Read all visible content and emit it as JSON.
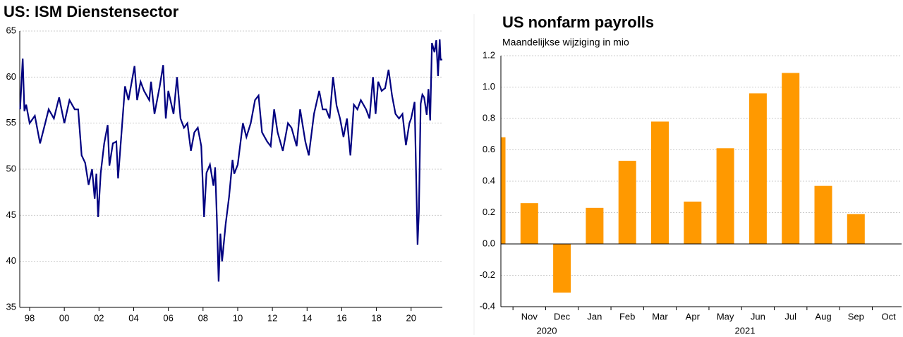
{
  "chart_data": [
    {
      "type": "line",
      "title": "US: ISM Dienstensector",
      "x": [
        1997.45,
        1997.6,
        1997.7,
        1997.8,
        1998.0,
        1998.3,
        1998.6,
        1998.9,
        1999.1,
        1999.4,
        1999.7,
        2000.0,
        2000.3,
        2000.6,
        2000.8,
        2001.0,
        2001.2,
        2001.4,
        2001.6,
        2001.75,
        2001.85,
        2001.95,
        2002.1,
        2002.3,
        2002.5,
        2002.6,
        2002.8,
        2003.0,
        2003.1,
        2003.3,
        2003.5,
        2003.7,
        2004.05,
        2004.2,
        2004.4,
        2004.6,
        2004.9,
        2005.0,
        2005.2,
        2005.5,
        2005.7,
        2005.85,
        2006.0,
        2006.3,
        2006.5,
        2006.7,
        2006.9,
        2007.1,
        2007.3,
        2007.5,
        2007.7,
        2007.9,
        2008.06,
        2008.2,
        2008.4,
        2008.6,
        2008.7,
        2008.8,
        2008.9,
        2009.0,
        2009.1,
        2009.3,
        2009.5,
        2009.7,
        2009.8,
        2010.0,
        2010.3,
        2010.5,
        2010.75,
        2011.0,
        2011.2,
        2011.4,
        2011.7,
        2011.9,
        2012.1,
        2012.3,
        2012.6,
        2012.9,
        2013.1,
        2013.4,
        2013.6,
        2013.9,
        2014.1,
        2014.4,
        2014.7,
        2014.9,
        2015.1,
        2015.3,
        2015.5,
        2015.7,
        2015.9,
        2016.1,
        2016.3,
        2016.5,
        2016.7,
        2016.9,
        2017.1,
        2017.4,
        2017.6,
        2017.8,
        2017.95,
        2018.1,
        2018.3,
        2018.5,
        2018.7,
        2018.9,
        2019.1,
        2019.3,
        2019.5,
        2019.7,
        2019.9,
        2020.0,
        2020.2,
        2020.37,
        2020.45,
        2020.55,
        2020.65,
        2020.75,
        2020.9,
        2021.0,
        2021.1,
        2021.2,
        2021.35,
        2021.45,
        2021.55,
        2021.65,
        2021.7,
        2021.8
      ],
      "series": [
        {
          "name": "ISM",
          "color": "#000080",
          "values": [
            56.5,
            62,
            56.3,
            57,
            55,
            55.8,
            52.8,
            55,
            56.5,
            55.5,
            57.8,
            55,
            57.5,
            56.5,
            56.5,
            51.5,
            50.7,
            48.3,
            50,
            46.8,
            49.5,
            44.8,
            49.6,
            52.8,
            54.8,
            50.4,
            52.8,
            53,
            49,
            54,
            59,
            57.5,
            61.2,
            57.5,
            59.5,
            58.5,
            57.5,
            59.5,
            56,
            59,
            61.3,
            55.5,
            58.5,
            56,
            60,
            55.5,
            54.5,
            55,
            52,
            54,
            54.5,
            52.5,
            44.8,
            49.6,
            50.5,
            48.2,
            50.2,
            44.4,
            37.8,
            43,
            40,
            44,
            47,
            51,
            49.5,
            50.5,
            55,
            53.5,
            55,
            57.5,
            58,
            54,
            53,
            52.5,
            56.5,
            54,
            52,
            55,
            54.5,
            52.5,
            56.5,
            53,
            51.5,
            56,
            58.5,
            56.5,
            56.5,
            55.5,
            60,
            56.9,
            55.5,
            53.5,
            55.5,
            51.5,
            57,
            56.5,
            57.5,
            56.5,
            55.5,
            60,
            56,
            59.5,
            58.5,
            58.8,
            60.8,
            58,
            56,
            55.5,
            56,
            52.6,
            55,
            55.5,
            57.3,
            41.8,
            45.4,
            57.1,
            58.1,
            57.8,
            55.9,
            58.7,
            55.3,
            63.7,
            62.7,
            64,
            60.1,
            64.1,
            61.9,
            61.9
          ]
        }
      ],
      "xlim": [
        1997.43,
        2021.8
      ],
      "xticks": [
        {
          "value": 1998,
          "label": "98"
        },
        {
          "value": 2000,
          "label": "00"
        },
        {
          "value": 2002,
          "label": "02"
        },
        {
          "value": 2004,
          "label": "04"
        },
        {
          "value": 2006,
          "label": "06"
        },
        {
          "value": 2008,
          "label": "08"
        },
        {
          "value": 2010,
          "label": "10"
        },
        {
          "value": 2012,
          "label": "12"
        },
        {
          "value": 2014,
          "label": "14"
        },
        {
          "value": 2016,
          "label": "16"
        },
        {
          "value": 2018,
          "label": "18"
        },
        {
          "value": 2020,
          "label": "20"
        }
      ],
      "ylim": [
        35,
        65
      ],
      "yticks": [
        35,
        40,
        45,
        50,
        55,
        60,
        65
      ],
      "grid": true
    },
    {
      "type": "bar",
      "title": "US nonfarm payrolls",
      "subtitle": "Maandelijkse wijziging in mio",
      "categories": [
        null,
        "Nov",
        "Dec",
        "Jan",
        "Feb",
        "Mar",
        "Apr",
        "May",
        "Jun",
        "Jul",
        "Aug",
        "Sep",
        "Oct"
      ],
      "values": [
        0.68,
        0.26,
        -0.31,
        0.23,
        0.53,
        0.78,
        0.27,
        0.61,
        0.96,
        1.09,
        0.37,
        0.19,
        null
      ],
      "year_labels": [
        "2020",
        "2021"
      ],
      "color": "#ff9900",
      "ylim": [
        -0.4,
        1.2
      ],
      "yticks": [
        -0.4,
        -0.2,
        {
          "value": 0,
          "label": "0.0"
        },
        0.2,
        0.4,
        0.6,
        0.8,
        {
          "value": 1,
          "label": "1.0"
        },
        1.2
      ],
      "grid": true
    }
  ]
}
